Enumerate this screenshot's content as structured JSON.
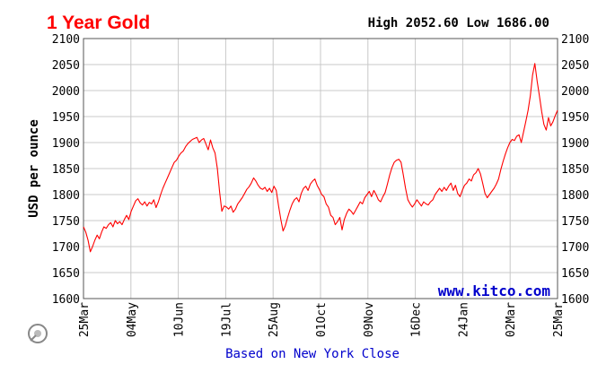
{
  "chart_data": {
    "type": "line",
    "title": "1 Year Gold",
    "high_label": "High",
    "high_value": "2052.60",
    "low_label": "Low",
    "low_value": "1686.00",
    "ylabel": "USD per ounce",
    "ylim": [
      1600,
      2100
    ],
    "yticks": [
      1600,
      1650,
      1700,
      1750,
      1800,
      1850,
      1900,
      1950,
      2000,
      2050,
      2100
    ],
    "xticks": [
      "25Mar",
      "04May",
      "10Jun",
      "19Jul",
      "25Aug",
      "01Oct",
      "09Nov",
      "16Dec",
      "24Jan",
      "02Mar",
      "25Mar"
    ],
    "grid": true,
    "footer": "Based on New York Close",
    "watermark": "www.kitco.com",
    "line_color": "#ff0000",
    "series": [
      {
        "values": [
          [
            0,
            1738
          ],
          [
            1,
            1728
          ],
          [
            2,
            1712
          ],
          [
            3,
            1690
          ],
          [
            4,
            1700
          ],
          [
            5,
            1712
          ],
          [
            6,
            1722
          ],
          [
            7,
            1715
          ],
          [
            8,
            1728
          ],
          [
            9,
            1738
          ],
          [
            10,
            1735
          ],
          [
            11,
            1742
          ],
          [
            12,
            1746
          ],
          [
            13,
            1738
          ],
          [
            14,
            1750
          ],
          [
            15,
            1744
          ],
          [
            16,
            1748
          ],
          [
            17,
            1742
          ],
          [
            18,
            1752
          ],
          [
            19,
            1760
          ],
          [
            20,
            1752
          ],
          [
            21,
            1768
          ],
          [
            22,
            1778
          ],
          [
            23,
            1788
          ],
          [
            24,
            1792
          ],
          [
            25,
            1784
          ],
          [
            26,
            1780
          ],
          [
            27,
            1786
          ],
          [
            28,
            1778
          ],
          [
            29,
            1785
          ],
          [
            30,
            1782
          ],
          [
            31,
            1790
          ],
          [
            32,
            1775
          ],
          [
            33,
            1786
          ],
          [
            34,
            1800
          ],
          [
            35,
            1812
          ],
          [
            36,
            1822
          ],
          [
            37,
            1832
          ],
          [
            38,
            1842
          ],
          [
            39,
            1852
          ],
          [
            40,
            1862
          ],
          [
            41,
            1866
          ],
          [
            42,
            1874
          ],
          [
            43,
            1880
          ],
          [
            44,
            1884
          ],
          [
            45,
            1892
          ],
          [
            46,
            1898
          ],
          [
            47,
            1902
          ],
          [
            48,
            1906
          ],
          [
            49,
            1908
          ],
          [
            50,
            1910
          ],
          [
            51,
            1900
          ],
          [
            52,
            1905
          ],
          [
            53,
            1908
          ],
          [
            54,
            1897
          ],
          [
            55,
            1886
          ],
          [
            56,
            1905
          ],
          [
            57,
            1890
          ],
          [
            58,
            1880
          ],
          [
            59,
            1850
          ],
          [
            60,
            1805
          ],
          [
            61,
            1768
          ],
          [
            62,
            1778
          ],
          [
            63,
            1776
          ],
          [
            64,
            1772
          ],
          [
            65,
            1778
          ],
          [
            66,
            1766
          ],
          [
            67,
            1772
          ],
          [
            68,
            1782
          ],
          [
            69,
            1788
          ],
          [
            70,
            1794
          ],
          [
            71,
            1802
          ],
          [
            72,
            1810
          ],
          [
            73,
            1815
          ],
          [
            74,
            1822
          ],
          [
            75,
            1832
          ],
          [
            76,
            1826
          ],
          [
            77,
            1818
          ],
          [
            78,
            1812
          ],
          [
            79,
            1810
          ],
          [
            80,
            1814
          ],
          [
            81,
            1806
          ],
          [
            82,
            1812
          ],
          [
            83,
            1804
          ],
          [
            84,
            1816
          ],
          [
            85,
            1808
          ],
          [
            86,
            1778
          ],
          [
            87,
            1752
          ],
          [
            88,
            1730
          ],
          [
            89,
            1740
          ],
          [
            90,
            1756
          ],
          [
            91,
            1770
          ],
          [
            92,
            1782
          ],
          [
            93,
            1790
          ],
          [
            94,
            1794
          ],
          [
            95,
            1786
          ],
          [
            96,
            1802
          ],
          [
            97,
            1812
          ],
          [
            98,
            1816
          ],
          [
            99,
            1808
          ],
          [
            100,
            1820
          ],
          [
            101,
            1826
          ],
          [
            102,
            1830
          ],
          [
            103,
            1818
          ],
          [
            104,
            1810
          ],
          [
            105,
            1800
          ],
          [
            106,
            1796
          ],
          [
            107,
            1782
          ],
          [
            108,
            1776
          ],
          [
            109,
            1760
          ],
          [
            110,
            1756
          ],
          [
            111,
            1742
          ],
          [
            112,
            1748
          ],
          [
            113,
            1756
          ],
          [
            114,
            1732
          ],
          [
            115,
            1752
          ],
          [
            116,
            1764
          ],
          [
            117,
            1772
          ],
          [
            118,
            1768
          ],
          [
            119,
            1762
          ],
          [
            120,
            1770
          ],
          [
            121,
            1778
          ],
          [
            122,
            1786
          ],
          [
            123,
            1782
          ],
          [
            124,
            1794
          ],
          [
            125,
            1800
          ],
          [
            126,
            1806
          ],
          [
            127,
            1796
          ],
          [
            128,
            1808
          ],
          [
            129,
            1800
          ],
          [
            130,
            1790
          ],
          [
            131,
            1786
          ],
          [
            132,
            1796
          ],
          [
            133,
            1804
          ],
          [
            134,
            1820
          ],
          [
            135,
            1838
          ],
          [
            136,
            1852
          ],
          [
            137,
            1862
          ],
          [
            138,
            1866
          ],
          [
            139,
            1868
          ],
          [
            140,
            1862
          ],
          [
            141,
            1838
          ],
          [
            142,
            1812
          ],
          [
            143,
            1790
          ],
          [
            144,
            1782
          ],
          [
            145,
            1776
          ],
          [
            146,
            1782
          ],
          [
            147,
            1790
          ],
          [
            148,
            1784
          ],
          [
            149,
            1778
          ],
          [
            150,
            1786
          ],
          [
            151,
            1782
          ],
          [
            152,
            1780
          ],
          [
            153,
            1786
          ],
          [
            154,
            1790
          ],
          [
            155,
            1800
          ],
          [
            156,
            1806
          ],
          [
            157,
            1812
          ],
          [
            158,
            1806
          ],
          [
            159,
            1814
          ],
          [
            160,
            1808
          ],
          [
            161,
            1816
          ],
          [
            162,
            1822
          ],
          [
            163,
            1808
          ],
          [
            164,
            1818
          ],
          [
            165,
            1802
          ],
          [
            166,
            1796
          ],
          [
            167,
            1808
          ],
          [
            168,
            1818
          ],
          [
            169,
            1822
          ],
          [
            170,
            1830
          ],
          [
            171,
            1826
          ],
          [
            172,
            1838
          ],
          [
            173,
            1842
          ],
          [
            174,
            1850
          ],
          [
            175,
            1840
          ],
          [
            176,
            1822
          ],
          [
            177,
            1802
          ],
          [
            178,
            1794
          ],
          [
            179,
            1800
          ],
          [
            180,
            1806
          ],
          [
            181,
            1812
          ],
          [
            182,
            1820
          ],
          [
            183,
            1830
          ],
          [
            184,
            1848
          ],
          [
            185,
            1864
          ],
          [
            186,
            1878
          ],
          [
            187,
            1890
          ],
          [
            188,
            1900
          ],
          [
            189,
            1906
          ],
          [
            190,
            1904
          ],
          [
            191,
            1912
          ],
          [
            192,
            1915
          ],
          [
            193,
            1900
          ],
          [
            194,
            1920
          ],
          [
            195,
            1940
          ],
          [
            196,
            1962
          ],
          [
            197,
            1990
          ],
          [
            198,
            2030
          ],
          [
            199,
            2052
          ],
          [
            200,
            2018
          ],
          [
            201,
            1990
          ],
          [
            202,
            1960
          ],
          [
            203,
            1935
          ],
          [
            204,
            1924
          ],
          [
            205,
            1948
          ],
          [
            206,
            1932
          ],
          [
            207,
            1940
          ],
          [
            208,
            1952
          ],
          [
            209,
            1962
          ]
        ]
      }
    ]
  }
}
